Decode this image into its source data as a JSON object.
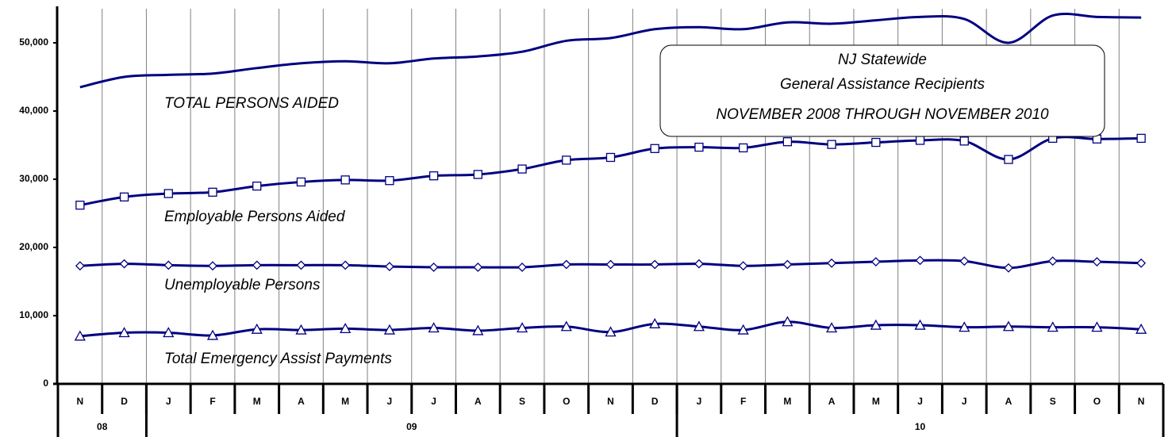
{
  "chart_data": {
    "type": "line",
    "title": "NJ Statewide",
    "subtitle": [
      "General Assistance Recipients",
      "NOVEMBER 2008 THROUGH NOVEMBER 2010"
    ],
    "categories": [
      "N",
      "D",
      "J",
      "F",
      "M",
      "A",
      "M",
      "J",
      "J",
      "A",
      "S",
      "O",
      "N",
      "D",
      "J",
      "F",
      "M",
      "A",
      "M",
      "J",
      "J",
      "A",
      "S",
      "O",
      "N"
    ],
    "years": [
      {
        "label": "08",
        "months": 2
      },
      {
        "label": "09",
        "months": 12
      },
      {
        "label": "10",
        "months": 11
      }
    ],
    "ylim": [
      0,
      55000
    ],
    "yticks": [
      0,
      {
        "value": 10000,
        "label": "10,000"
      },
      {
        "value": 20000,
        "label": "20,000"
      },
      {
        "value": 30000,
        "label": "30,000"
      },
      {
        "value": 40000,
        "label": "40,000"
      },
      {
        "value": 50000,
        "label": "50,000"
      }
    ],
    "grid": "x",
    "series": [
      {
        "name": "TOTAL PERSONS AIDED",
        "color": "#000080",
        "marker": "none",
        "values": [
          43500,
          45000,
          45300,
          45500,
          46300,
          47000,
          47300,
          47000,
          47700,
          48000,
          48700,
          50300,
          50700,
          52000,
          52300,
          52000,
          53000,
          52800,
          53300,
          53800,
          53500,
          50000,
          54000,
          53800,
          53700
        ]
      },
      {
        "name": "Employable Persons Aided",
        "color": "#000080",
        "marker": "square",
        "values": [
          26200,
          27400,
          27900,
          28100,
          29000,
          29600,
          29900,
          29800,
          30500,
          30700,
          31500,
          32800,
          33200,
          34500,
          34700,
          34600,
          35500,
          35100,
          35400,
          35700,
          35600,
          32900,
          36000,
          35900,
          36000
        ]
      },
      {
        "name": "Unemployable Persons",
        "color": "#000080",
        "marker": "diamond",
        "values": [
          17300,
          17600,
          17400,
          17300,
          17400,
          17400,
          17400,
          17200,
          17100,
          17100,
          17100,
          17500,
          17500,
          17500,
          17600,
          17300,
          17500,
          17700,
          17900,
          18100,
          18000,
          17000,
          18000,
          17900,
          17700
        ]
      },
      {
        "name": "Total Emergency Assist Payments",
        "color": "#000080",
        "marker": "triangle",
        "values": [
          7000,
          7500,
          7500,
          7100,
          8000,
          7900,
          8100,
          7900,
          8200,
          7800,
          8200,
          8400,
          7600,
          8800,
          8400,
          7900,
          9100,
          8200,
          8600,
          8600,
          8300,
          8400,
          8300,
          8300,
          8000
        ]
      }
    ]
  }
}
